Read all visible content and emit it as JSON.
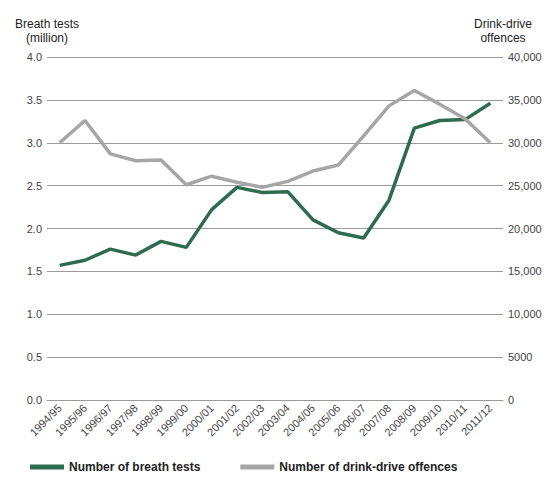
{
  "chart_data": {
    "type": "line",
    "y_label": "Breath tests\n(million)",
    "y2_label": "Drink-drive\noffences",
    "categories": [
      "1994/95",
      "1995/96",
      "1996/97",
      "1997/98",
      "1998/99",
      "1999/00",
      "2000/01",
      "2001/02",
      "2002/03",
      "2003/04",
      "2004/05",
      "2005/06",
      "2006/07",
      "2007/08",
      "2008/09",
      "2009/10",
      "2010/11",
      "2011/12"
    ],
    "series": [
      {
        "name": "Number of breath tests",
        "color": "#2e6b4f",
        "values": [
          1.57,
          1.63,
          1.76,
          1.69,
          1.85,
          1.78,
          2.22,
          2.48,
          2.42,
          2.43,
          2.1,
          1.95,
          1.89,
          2.33,
          3.17,
          3.26,
          3.27,
          3.46
        ]
      },
      {
        "name": "Number of drink-drive offences",
        "color": "#a6a6a6",
        "axis": "y2",
        "values": [
          30000,
          32600,
          28700,
          27900,
          28000,
          25100,
          26100,
          25400,
          24800,
          25500,
          26700,
          27400,
          30800,
          34300,
          36100,
          34500,
          32800,
          30000
        ]
      }
    ],
    "ylim": [
      0,
      4
    ],
    "yticks": [
      {
        "value": 0,
        "label": "0.0"
      },
      {
        "value": 0.5,
        "label": "0.5"
      },
      {
        "value": 1,
        "label": "1.0"
      },
      {
        "value": 1.5,
        "label": "1.5"
      },
      {
        "value": 2,
        "label": "2.0"
      },
      {
        "value": 2.5,
        "label": "2.5"
      },
      {
        "value": 3,
        "label": "3.0"
      },
      {
        "value": 3.5,
        "label": "3.5"
      },
      {
        "value": 4,
        "label": "4.0"
      }
    ],
    "y2lim": [
      0,
      40000
    ],
    "y2ticks": [
      0,
      5000,
      {
        "value": 10000,
        "label": "10,000"
      },
      {
        "value": 15000,
        "label": "15,000"
      },
      {
        "value": 20000,
        "label": "20,000"
      },
      {
        "value": 25000,
        "label": "25,000"
      },
      {
        "value": 30000,
        "label": "30,000"
      },
      {
        "value": 35000,
        "label": "35,000"
      },
      {
        "value": 40000,
        "label": "40,000"
      }
    ],
    "grid": true,
    "legend": "bottom"
  }
}
